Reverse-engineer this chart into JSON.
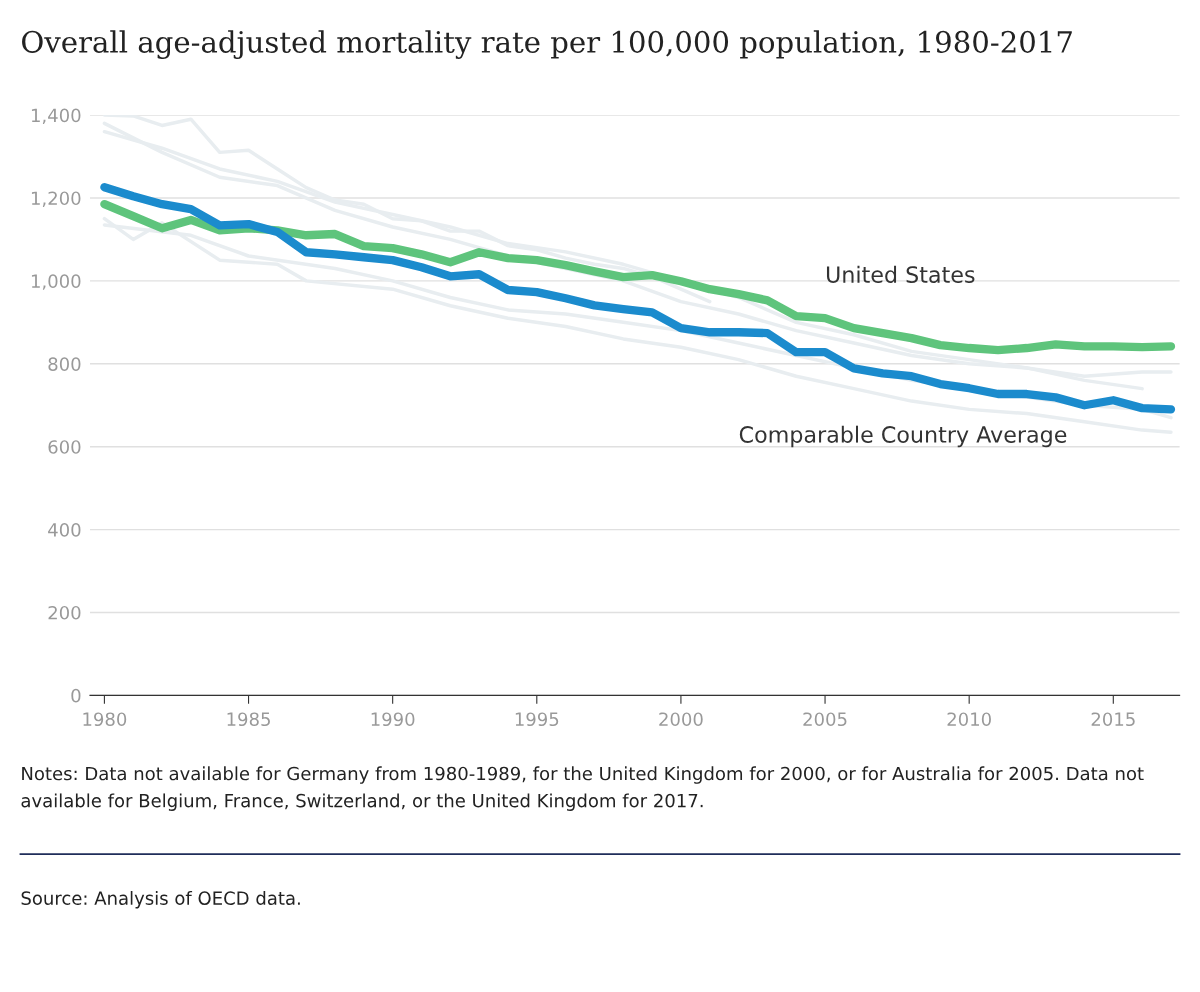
{
  "chart_data": {
    "type": "line",
    "title": "Overall age-adjusted mortality rate per 100,000 population, 1980-2017",
    "x": [
      1980,
      1981,
      1982,
      1983,
      1984,
      1985,
      1986,
      1987,
      1988,
      1989,
      1990,
      1991,
      1992,
      1993,
      1994,
      1995,
      1996,
      1997,
      1998,
      1999,
      2000,
      2001,
      2002,
      2003,
      2004,
      2005,
      2006,
      2007,
      2008,
      2009,
      2010,
      2011,
      2012,
      2013,
      2014,
      2015,
      2016,
      2017
    ],
    "series": [
      {
        "color": "#e8edf0",
        "x": [
          1980,
          1981,
          1982,
          1983,
          1984,
          1985,
          1986,
          1987,
          1988,
          1989,
          1990,
          1991,
          1992,
          1993,
          1994,
          1995,
          1996,
          1997,
          1998,
          1999,
          2000,
          2001
        ],
        "values": [
          1400,
          1398,
          1375,
          1390,
          1310,
          1315,
          1270,
          1225,
          1195,
          1185,
          1150,
          1145,
          1120,
          1120,
          1085,
          1075,
          1055,
          1040,
          1030,
          1010,
          980,
          950
        ]
      },
      {
        "color": "#e8edf0",
        "x": [
          1980,
          1982,
          1984,
          1986,
          1988,
          1990,
          1992,
          1994,
          1996,
          1998,
          2000,
          2002,
          2004,
          2006,
          2008,
          2010,
          2012,
          2014,
          2016,
          2017
        ],
        "values": [
          1380,
          1310,
          1250,
          1230,
          1170,
          1130,
          1100,
          1060,
          1030,
          1000,
          950,
          920,
          880,
          850,
          820,
          800,
          790,
          770,
          780,
          780
        ]
      },
      {
        "color": "#e8edf0",
        "x": [
          1980,
          1981,
          1982,
          1984,
          1986,
          1987,
          1990,
          1992,
          1994,
          1996,
          1998,
          2000,
          2002,
          2004,
          2006,
          2008,
          2010,
          2012,
          2014,
          2016,
          2017
        ],
        "values": [
          1150,
          1100,
          1140,
          1050,
          1040,
          1000,
          980,
          940,
          910,
          890,
          860,
          840,
          810,
          770,
          740,
          710,
          690,
          680,
          660,
          640,
          635
        ]
      },
      {
        "color": "#e8edf0",
        "x": [
          1980,
          1983,
          1985,
          1988,
          1990,
          1992,
          1994,
          1996,
          1998,
          2000,
          2002,
          2004,
          2006,
          2008,
          2010,
          2012,
          2014,
          2016,
          2017
        ],
        "values": [
          1135,
          1110,
          1060,
          1030,
          1000,
          960,
          930,
          920,
          900,
          880,
          850,
          820,
          790,
          760,
          740,
          720,
          700,
          690,
          670
        ]
      },
      {
        "color": "#e8edf0",
        "x": [
          1980,
          1982,
          1984,
          1986,
          1988,
          1990,
          1992,
          1994,
          1996,
          1998,
          2000,
          2002,
          2004,
          2006,
          2008,
          2010,
          2012,
          2014,
          2016
        ],
        "values": [
          1360,
          1320,
          1270,
          1240,
          1190,
          1160,
          1130,
          1090,
          1070,
          1040,
          1000,
          960,
          900,
          870,
          830,
          810,
          790,
          760,
          740
        ]
      },
      {
        "name": "United States",
        "color": "#5ec47c",
        "values": [
          1185,
          1156,
          1127,
          1147,
          1122,
          1127,
          1122,
          1110,
          1113,
          1084,
          1079,
          1064,
          1045,
          1069,
          1055,
          1050,
          1038,
          1023,
          1009,
          1014,
          999,
          980,
          968,
          953,
          915,
          910,
          886,
          874,
          862,
          845,
          838,
          833,
          838,
          847,
          842,
          842,
          840,
          842
        ]
      },
      {
        "name": "Comparable Country Average",
        "color": "#1b8bcd",
        "values": [
          1226,
          1204,
          1185,
          1173,
          1134,
          1137,
          1118,
          1069,
          1064,
          1057,
          1050,
          1033,
          1011,
          1016,
          978,
          973,
          958,
          941,
          932,
          924,
          886,
          876,
          876,
          874,
          828,
          828,
          789,
          777,
          770,
          751,
          741,
          727,
          727,
          719,
          700,
          712,
          693,
          690
        ]
      }
    ],
    "xlim": [
      1979.5,
      2017.3
    ],
    "xticks": [
      1980,
      1985,
      1990,
      1995,
      2000,
      2005,
      2010,
      2015
    ],
    "ylim": [
      0,
      1400
    ],
    "yticks": [
      0,
      {
        "value": 200,
        "label": "200"
      },
      {
        "value": 400,
        "label": "400"
      },
      {
        "value": 600,
        "label": "600"
      },
      {
        "value": 800,
        "label": "800"
      },
      {
        "value": 1000,
        "label": "1,000"
      },
      {
        "value": 1200,
        "label": "1,200"
      },
      {
        "value": 1400,
        "label": "1,400"
      }
    ],
    "grid": "y",
    "legend": false,
    "marker": "none",
    "line_style": "solid",
    "annotations": [
      "Notes: Data not available for Germany from 1980-1989, for the United Kingdom for 2000, or for Australia for 2005. Data not available for Belgium, France, Switzerland, or the United Kingdom for 2017.",
      "Source: Analysis of OECD data."
    ]
  }
}
